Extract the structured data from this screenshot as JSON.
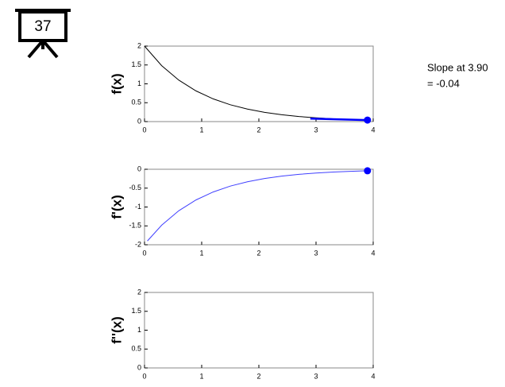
{
  "badge": "37",
  "chart_data": [
    {
      "type": "line",
      "ylabel": "f(x)",
      "x": [
        0,
        0.3,
        0.6,
        0.9,
        1.2,
        1.5,
        1.8,
        2.1,
        2.4,
        2.7,
        3.0,
        3.3,
        3.6,
        3.9
      ],
      "values": [
        2,
        1.482,
        1.098,
        0.813,
        0.602,
        0.446,
        0.331,
        0.245,
        0.181,
        0.134,
        0.1,
        0.074,
        0.055,
        0.04
      ],
      "color": "#000000",
      "tangent": {
        "x": [
          2.9,
          3.9
        ],
        "values": [
          0.08,
          0.04
        ],
        "color": "#0000ff"
      },
      "point": {
        "x": 3.9,
        "value": 0.04,
        "color": "#0000ff"
      },
      "xlim": [
        0,
        4
      ],
      "xticks": [
        0,
        1,
        2,
        3,
        4
      ],
      "ylim": [
        0,
        2
      ],
      "yticks": [
        0,
        0.5,
        1,
        1.5,
        2
      ],
      "annotation": [
        "Slope at 3.90",
        "= -0.04"
      ]
    },
    {
      "type": "line",
      "ylabel": "f'(x)",
      "x": [
        0.05,
        0.3,
        0.6,
        0.9,
        1.2,
        1.5,
        1.8,
        2.1,
        2.4,
        2.7,
        3.0,
        3.3,
        3.6,
        3.9
      ],
      "values": [
        -1.9,
        -1.482,
        -1.098,
        -0.813,
        -0.602,
        -0.446,
        -0.331,
        -0.245,
        -0.181,
        -0.134,
        -0.1,
        -0.074,
        -0.055,
        -0.04
      ],
      "color": "#4040ff",
      "point": {
        "x": 3.9,
        "value": -0.04,
        "color": "#0000ff"
      },
      "xlim": [
        0,
        4
      ],
      "xticks": [
        0,
        1,
        2,
        3,
        4
      ],
      "ylim": [
        -2,
        0
      ],
      "yticks": [
        -2,
        -1.5,
        -1,
        -0.5,
        0
      ]
    },
    {
      "type": "line",
      "ylabel": "f''(x)",
      "x": [],
      "values": [],
      "color": "#000000",
      "xlim": [
        0,
        4
      ],
      "xticks": [
        0,
        1,
        2,
        3,
        4
      ],
      "ylim": [
        0,
        2
      ],
      "yticks": [
        0,
        0.5,
        1,
        1.5,
        2
      ]
    }
  ]
}
